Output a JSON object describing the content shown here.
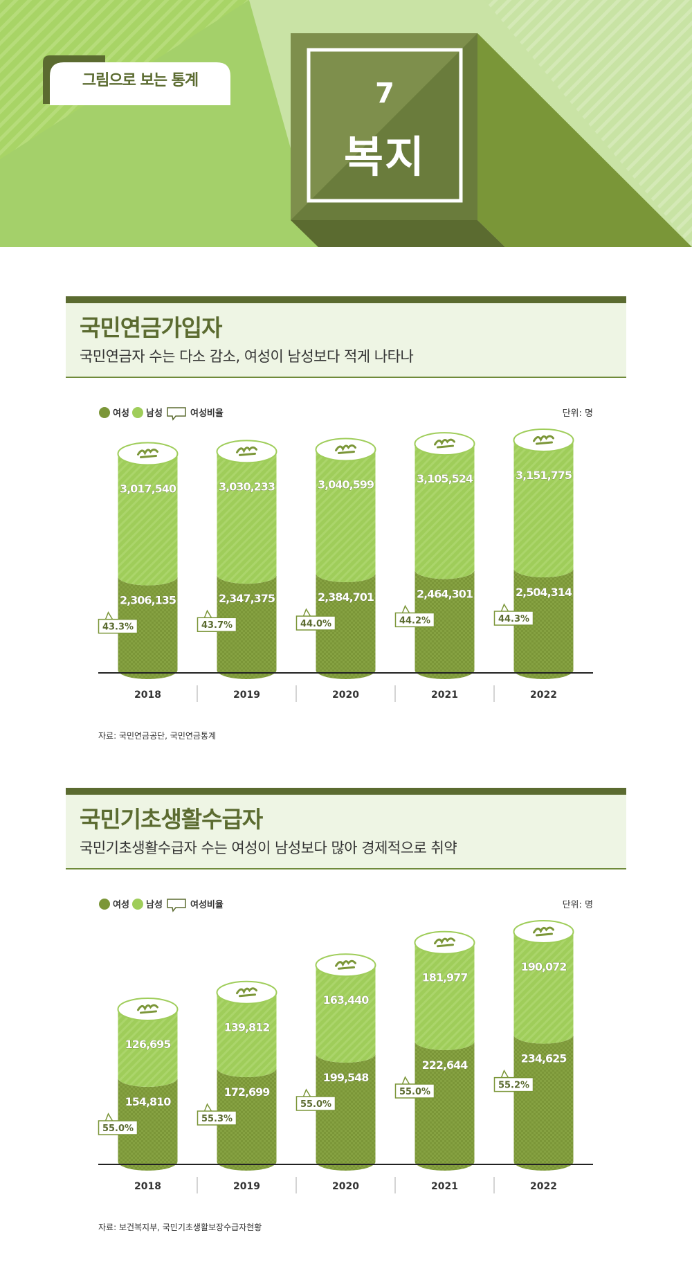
{
  "header": {
    "tag": "그림으로 보는 통계",
    "number": "7",
    "title": "복지"
  },
  "colors": {
    "female": "#7b9638",
    "male": "#9fcd5a",
    "dark": "#5b6b30",
    "light_bg": "#eef5e4"
  },
  "sections": [
    {
      "title": "국민연금가입자",
      "subtitle": "국민연금자 수는 다소 감소, 여성이 남성보다 적게 나타나",
      "source": "자료: 국민연금공단, 국민연금통계"
    },
    {
      "title": "국민기초생활수급자",
      "subtitle": "국민기초생활수급자 수는 여성이 남성보다 많아 경제적으로 취약",
      "source": "자료: 보건복지부, 국민기초생활보장수급자현황"
    }
  ],
  "chart_data": [
    {
      "type": "bar",
      "stacked": true,
      "legend": [
        "여성",
        "남성",
        "여성비율"
      ],
      "unit": "단위: 명",
      "categories": [
        "2018",
        "2019",
        "2020",
        "2021",
        "2022"
      ],
      "series": [
        {
          "name": "여성",
          "values": [
            2306135,
            2347375,
            2384701,
            2464301,
            2504314
          ]
        },
        {
          "name": "남성",
          "values": [
            3017540,
            3030233,
            3040599,
            3105524,
            3151775
          ]
        }
      ],
      "female_labels": [
        "2,306,135",
        "2,347,375",
        "2,384,701",
        "2,464,301",
        "2,504,314"
      ],
      "male_labels": [
        "3,017,540",
        "3,030,233",
        "3,040,599",
        "3,105,524",
        "3,151,775"
      ],
      "female_ratio": [
        "43.3%",
        "43.7%",
        "44.0%",
        "44.2%",
        "44.3%"
      ]
    },
    {
      "type": "bar",
      "stacked": true,
      "legend": [
        "여성",
        "남성",
        "여성비율"
      ],
      "unit": "단위: 명",
      "categories": [
        "2018",
        "2019",
        "2020",
        "2021",
        "2022"
      ],
      "series": [
        {
          "name": "여성",
          "values": [
            154810,
            172699,
            199548,
            222644,
            234625
          ]
        },
        {
          "name": "남성",
          "values": [
            126695,
            139812,
            163440,
            181977,
            190072
          ]
        }
      ],
      "female_labels": [
        "154,810",
        "172,699",
        "199,548",
        "222,644",
        "234,625"
      ],
      "male_labels": [
        "126,695",
        "139,812",
        "163,440",
        "181,977",
        "190,072"
      ],
      "female_ratio": [
        "55.0%",
        "55.3%",
        "55.0%",
        "55.0%",
        "55.2%"
      ]
    }
  ]
}
